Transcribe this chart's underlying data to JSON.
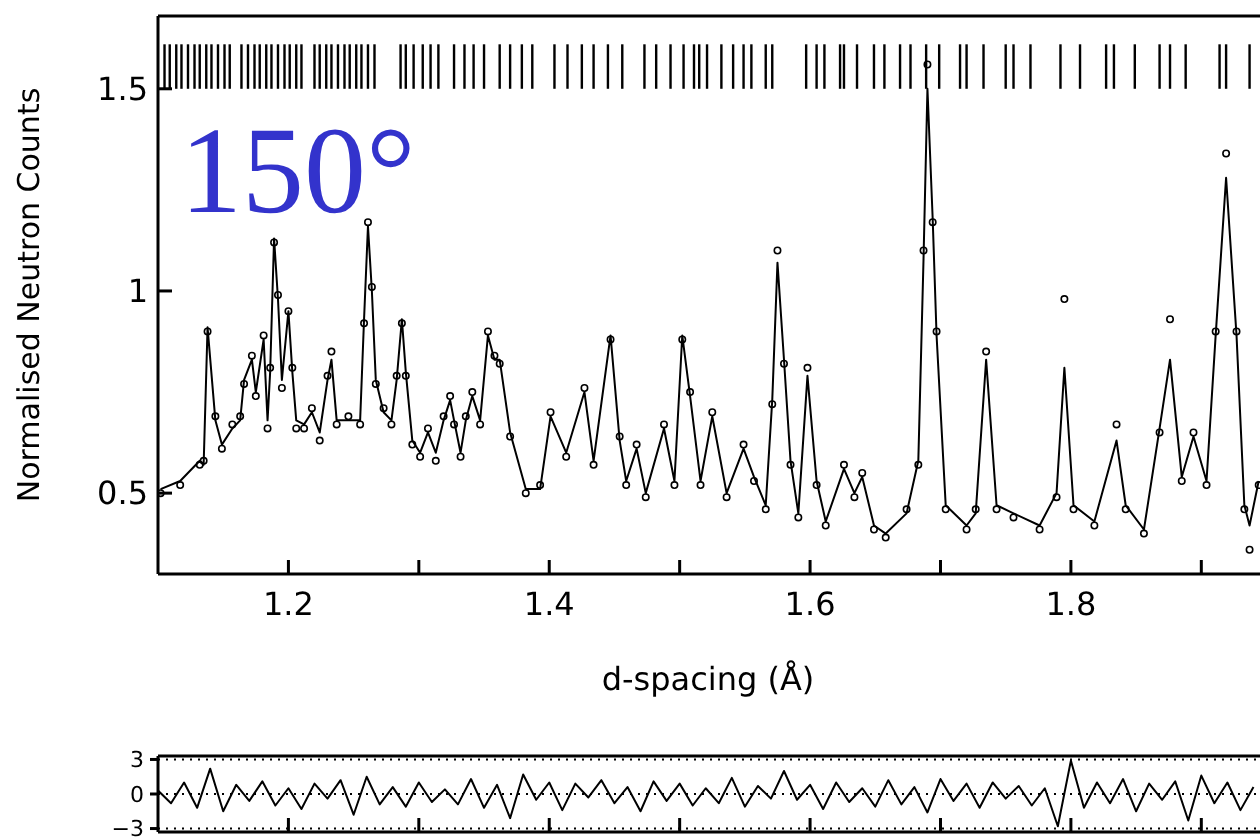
{
  "chart_data": [
    {
      "type": "line",
      "ylabel": "Normalised Neutron Counts",
      "xlabel": "d-spacing (Å)",
      "annotations": [
        "150°"
      ],
      "xlim": [
        1.1,
        1.945
      ],
      "ylim": [
        0.3,
        1.68
      ],
      "xticks": [
        1.2,
        {
          "value": 1.3,
          "label": null
        },
        1.4,
        {
          "value": 1.5,
          "label": null
        },
        1.6,
        {
          "value": 1.7,
          "label": null
        },
        1.8,
        {
          "value": 1.9,
          "label": null
        }
      ],
      "yticks": [
        0.5,
        1,
        1.5
      ],
      "grid": false,
      "x": [
        1.102,
        1.117,
        1.132,
        1.135,
        1.138,
        1.144,
        1.149,
        1.157,
        1.163,
        1.166,
        1.172,
        1.175,
        1.181,
        1.184,
        1.186,
        1.189,
        1.192,
        1.195,
        1.2,
        1.203,
        1.206,
        1.212,
        1.218,
        1.224,
        1.23,
        1.233,
        1.237,
        1.246,
        1.255,
        1.258,
        1.261,
        1.264,
        1.267,
        1.273,
        1.279,
        1.283,
        1.287,
        1.29,
        1.295,
        1.301,
        1.307,
        1.313,
        1.319,
        1.324,
        1.327,
        1.332,
        1.336,
        1.341,
        1.347,
        1.353,
        1.358,
        1.362,
        1.37,
        1.382,
        1.393,
        1.401,
        1.413,
        1.427,
        1.434,
        1.447,
        1.454,
        1.459,
        1.467,
        1.474,
        1.488,
        1.496,
        1.502,
        1.508,
        1.516,
        1.525,
        1.536,
        1.549,
        1.557,
        1.566,
        1.571,
        1.575,
        1.58,
        1.585,
        1.591,
        1.598,
        1.605,
        1.612,
        1.626,
        1.634,
        1.64,
        1.649,
        1.658,
        1.674,
        1.683,
        1.687,
        1.69,
        1.694,
        1.697,
        1.704,
        1.72,
        1.727,
        1.735,
        1.743,
        1.756,
        1.776,
        1.789,
        1.795,
        1.802,
        1.818,
        1.835,
        1.842,
        1.856,
        1.868,
        1.876,
        1.885,
        1.894,
        1.904,
        1.911,
        1.919,
        1.927,
        1.933,
        1.937,
        1.944
      ],
      "series": [
        {
          "type": "scatter",
          "marker": "circle",
          "color": "#000000",
          "values": [
            0.5,
            0.52,
            0.57,
            0.58,
            0.9,
            0.69,
            0.61,
            0.67,
            0.69,
            0.77,
            0.84,
            0.74,
            0.89,
            0.66,
            0.81,
            1.12,
            0.99,
            0.76,
            0.95,
            0.81,
            0.66,
            0.66,
            0.71,
            0.63,
            0.79,
            0.85,
            0.67,
            0.69,
            0.67,
            0.92,
            1.17,
            1.01,
            0.77,
            0.71,
            0.67,
            0.79,
            0.92,
            0.79,
            0.62,
            0.59,
            0.66,
            0.58,
            0.69,
            0.74,
            0.67,
            0.59,
            0.69,
            0.75,
            0.67,
            0.9,
            0.84,
            0.82,
            0.64,
            0.5,
            0.52,
            0.7,
            0.59,
            0.76,
            0.57,
            0.88,
            0.64,
            0.52,
            0.62,
            0.49,
            0.67,
            0.52,
            0.88,
            0.75,
            0.52,
            0.7,
            0.49,
            0.62,
            0.53,
            0.46,
            0.72,
            1.1,
            0.82,
            0.57,
            0.44,
            0.81,
            0.52,
            0.42,
            0.57,
            0.49,
            0.55,
            0.41,
            0.39,
            0.46,
            0.57,
            1.1,
            1.56,
            1.17,
            0.9,
            0.46,
            0.41,
            0.46,
            0.85,
            0.46,
            0.44,
            0.41,
            0.49,
            0.98,
            0.46,
            0.42,
            0.67,
            0.46,
            0.4,
            0.65,
            0.93,
            0.53,
            0.65,
            0.52,
            0.9,
            1.34,
            0.9,
            0.46,
            0.36,
            0.52
          ]
        },
        {
          "marker": "none",
          "color": "#000000",
          "values": [
            0.51,
            0.53,
            0.58,
            0.57,
            0.91,
            0.68,
            0.62,
            0.66,
            0.68,
            0.78,
            0.83,
            0.75,
            0.88,
            0.68,
            0.8,
            1.13,
            0.98,
            0.78,
            0.95,
            0.8,
            0.68,
            0.67,
            0.7,
            0.65,
            0.78,
            0.83,
            0.68,
            0.68,
            0.68,
            0.93,
            1.16,
            1,
            0.78,
            0.7,
            0.68,
            0.78,
            0.93,
            0.8,
            0.63,
            0.6,
            0.65,
            0.6,
            0.68,
            0.73,
            0.68,
            0.6,
            0.68,
            0.74,
            0.68,
            0.89,
            0.83,
            0.83,
            0.65,
            0.51,
            0.51,
            0.69,
            0.6,
            0.75,
            0.58,
            0.89,
            0.63,
            0.53,
            0.61,
            0.5,
            0.66,
            0.53,
            0.89,
            0.74,
            0.53,
            0.69,
            0.5,
            0.61,
            0.54,
            0.47,
            0.73,
            1.07,
            0.83,
            0.58,
            0.45,
            0.79,
            0.53,
            0.43,
            0.56,
            0.5,
            0.54,
            0.42,
            0.4,
            0.45,
            0.58,
            1.08,
            1.5,
            1.18,
            0.89,
            0.47,
            0.42,
            0.45,
            0.83,
            0.47,
            0.45,
            0.42,
            0.5,
            0.81,
            0.47,
            0.43,
            0.63,
            0.47,
            0.41,
            0.66,
            0.83,
            0.54,
            0.64,
            0.53,
            0.89,
            1.28,
            0.89,
            0.47,
            0.42,
            0.53
          ]
        },
        {
          "type": "bar",
          "color": "#000000",
          "base": [
            1.5,
            1.5,
            1.5,
            1.5,
            1.5,
            1.5,
            1.5,
            1.5,
            1.5,
            1.5,
            1.5,
            1.5,
            1.5,
            1.5,
            1.5,
            1.5,
            1.5,
            1.5,
            1.5,
            1.5,
            1.5,
            1.5,
            1.5,
            1.5,
            1.5,
            1.5,
            1.5,
            1.5,
            1.5,
            1.5,
            1.5,
            1.5,
            1.5,
            1.5,
            1.5,
            1.5,
            1.5,
            1.5,
            1.5,
            1.5,
            1.5,
            1.5,
            1.5,
            1.5,
            1.5,
            1.5,
            1.5,
            1.5,
            1.5,
            1.5,
            1.5,
            1.5,
            1.5,
            1.5,
            1.5,
            1.5,
            1.5,
            1.5,
            1.5,
            1.5,
            1.5,
            1.5,
            1.5,
            1.5,
            1.5,
            1.5,
            1.5,
            1.5,
            1.5,
            1.5,
            1.5,
            1.5,
            1.5,
            1.5,
            1.5,
            1.5,
            1.5,
            1.5,
            1.5,
            1.5,
            1.5,
            1.5,
            1.5,
            1.5,
            1.5,
            1.5,
            1.5,
            1.5,
            1.5,
            1.5,
            1.5,
            1.5,
            1.5,
            1.5,
            1.5,
            1.5
          ],
          "x": [
            1.105,
            1.109,
            1.114,
            1.118,
            1.123,
            1.128,
            1.132,
            1.137,
            1.141,
            1.146,
            1.151,
            1.155,
            1.164,
            1.169,
            1.174,
            1.178,
            1.183,
            1.187,
            1.192,
            1.197,
            1.201,
            1.206,
            1.21,
            1.22,
            1.224,
            1.229,
            1.233,
            1.238,
            1.243,
            1.247,
            1.252,
            1.256,
            1.261,
            1.266,
            1.286,
            1.29,
            1.296,
            1.303,
            1.309,
            1.315,
            1.327,
            1.335,
            1.342,
            1.35,
            1.362,
            1.37,
            1.379,
            1.387,
            1.404,
            1.414,
            1.425,
            1.434,
            1.445,
            1.456,
            1.473,
            1.482,
            1.493,
            1.503,
            1.511,
            1.515,
            1.521,
            1.532,
            1.541,
            1.549,
            1.555,
            1.566,
            1.571,
            1.597,
            1.605,
            1.611,
            1.623,
            1.626,
            1.636,
            1.649,
            1.657,
            1.669,
            1.677,
            1.689,
            1.699,
            1.715,
            1.72,
            1.733,
            1.75,
            1.756,
            1.769,
            1.792,
            1.807,
            1.827,
            1.833,
            1.849,
            1.868,
            1.876,
            1.888,
            1.914,
            1.919,
            1.937
          ],
          "values": [
            0.11,
            0.11,
            0.11,
            0.11,
            0.11,
            0.11,
            0.11,
            0.11,
            0.11,
            0.11,
            0.11,
            0.11,
            0.11,
            0.11,
            0.11,
            0.11,
            0.11,
            0.11,
            0.11,
            0.11,
            0.11,
            0.11,
            0.11,
            0.11,
            0.11,
            0.11,
            0.11,
            0.11,
            0.11,
            0.11,
            0.11,
            0.11,
            0.11,
            0.11,
            0.11,
            0.11,
            0.11,
            0.11,
            0.11,
            0.11,
            0.11,
            0.11,
            0.11,
            0.11,
            0.11,
            0.11,
            0.11,
            0.11,
            0.11,
            0.11,
            0.11,
            0.11,
            0.11,
            0.11,
            0.11,
            0.11,
            0.11,
            0.11,
            0.11,
            0.11,
            0.11,
            0.11,
            0.11,
            0.11,
            0.11,
            0.11,
            0.11,
            0.11,
            0.11,
            0.11,
            0.11,
            0.11,
            0.11,
            0.11,
            0.11,
            0.11,
            0.11,
            0.11,
            0.11,
            0.11,
            0.11,
            0.11,
            0.11,
            0.11,
            0.11,
            0.11,
            0.11,
            0.11,
            0.11,
            0.11,
            0.11,
            0.11,
            0.11,
            0.11,
            0.11,
            0.11
          ]
        }
      ]
    },
    {
      "type": "line",
      "tick_labels": "y",
      "xlim": [
        1.1,
        1.945
      ],
      "ylim": [
        -3.3,
        3.3
      ],
      "xticks": [
        {
          "value": 1.2,
          "label": null
        },
        {
          "value": 1.3,
          "label": null
        },
        {
          "value": 1.4,
          "label": null
        },
        {
          "value": 1.5,
          "label": null
        },
        {
          "value": 1.6,
          "label": null
        },
        {
          "value": 1.7,
          "label": null
        },
        {
          "value": 1.8,
          "label": null
        },
        {
          "value": 1.9,
          "label": null
        }
      ],
      "yticks": [
        3,
        0,
        {
          "value": -3,
          "label": "−3"
        }
      ],
      "grid": "y",
      "x": [
        1.1,
        1.11,
        1.12,
        1.13,
        1.14,
        1.15,
        1.16,
        1.17,
        1.18,
        1.19,
        1.2,
        1.21,
        1.22,
        1.23,
        1.24,
        1.25,
        1.26,
        1.27,
        1.28,
        1.29,
        1.3,
        1.31,
        1.32,
        1.33,
        1.34,
        1.35,
        1.36,
        1.37,
        1.38,
        1.39,
        1.4,
        1.41,
        1.42,
        1.43,
        1.44,
        1.45,
        1.46,
        1.47,
        1.48,
        1.49,
        1.5,
        1.51,
        1.52,
        1.53,
        1.54,
        1.55,
        1.56,
        1.57,
        1.58,
        1.59,
        1.6,
        1.61,
        1.62,
        1.63,
        1.64,
        1.65,
        1.66,
        1.67,
        1.68,
        1.69,
        1.7,
        1.71,
        1.72,
        1.73,
        1.74,
        1.75,
        1.76,
        1.77,
        1.78,
        1.79,
        1.8,
        1.81,
        1.82,
        1.83,
        1.84,
        1.85,
        1.86,
        1.87,
        1.88,
        1.89,
        1.9,
        1.91,
        1.92,
        1.93,
        1.94
      ],
      "series": [
        {
          "marker": "none",
          "color": "#000000",
          "values": [
            0.3,
            -0.8,
            1,
            -1.2,
            2.2,
            -1.5,
            0.8,
            -0.6,
            1.1,
            -1,
            0.5,
            -1.3,
            0.9,
            -0.4,
            1.2,
            -1.8,
            1.5,
            -0.9,
            0.6,
            -1.1,
            1,
            -0.7,
            0.4,
            -0.9,
            1.3,
            -1.2,
            0.8,
            -2.1,
            1.7,
            -0.5,
            1,
            -1.4,
            0.9,
            -0.3,
            1.2,
            -0.8,
            0.6,
            -1.5,
            1.1,
            -0.6,
            0.9,
            -1,
            0.5,
            -0.8,
            1.4,
            -1.1,
            0.7,
            -0.4,
            2,
            -0.5,
            0.8,
            -1.3,
            1,
            -0.7,
            0.5,
            -1.1,
            1.2,
            -0.9,
            0.6,
            -1.6,
            1.3,
            -0.6,
            0.9,
            -1.2,
            1,
            -0.4,
            0.7,
            -1,
            0.5,
            -2.8,
            2.9,
            -1.2,
            1,
            -0.8,
            1.3,
            -1.5,
            0.9,
            -0.5,
            1.1,
            -2.3,
            1.6,
            -0.8,
            1,
            -1.4,
            0.6
          ]
        }
      ]
    }
  ]
}
